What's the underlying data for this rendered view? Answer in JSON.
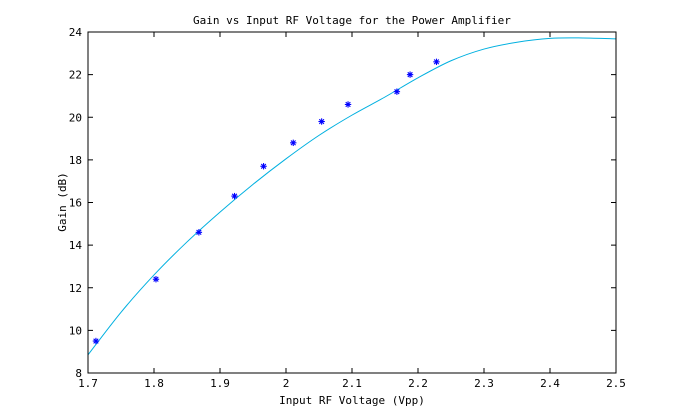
{
  "chart_data": {
    "type": "scatter",
    "title": "Gain vs Input RF Voltage for the Power Amplifier",
    "xlabel": "Input RF Voltage (Vpp)",
    "ylabel": "Gain (dB)",
    "xlim": [
      1.7,
      2.5
    ],
    "ylim": [
      8,
      24
    ],
    "xticks": [
      "1.7",
      "1.8",
      "1.9",
      "2",
      "2.1",
      "2.2",
      "2.3",
      "2.4",
      "2.5"
    ],
    "yticks": [
      "8",
      "10",
      "12",
      "14",
      "16",
      "18",
      "20",
      "22",
      "24"
    ],
    "grid": false,
    "series": [
      {
        "type": "scatter",
        "marker": "asterisk",
        "color": "#0000ff",
        "x": [
          1.712,
          1.803,
          1.868,
          1.922,
          1.966,
          2.011,
          2.054,
          2.094,
          2.168,
          2.188,
          2.228
        ],
        "y": [
          9.5,
          12.4,
          14.6,
          16.3,
          17.7,
          18.8,
          19.8,
          20.6,
          21.2,
          22.0,
          22.6
        ]
      },
      {
        "type": "line",
        "color": "#00b0e0",
        "x": [
          1.7,
          1.75,
          1.8,
          1.85,
          1.9,
          1.95,
          2.0,
          2.05,
          2.1,
          2.15,
          2.2,
          2.25,
          2.3,
          2.35,
          2.4,
          2.45,
          2.5
        ],
        "y": [
          8.85,
          10.85,
          12.6,
          14.15,
          15.55,
          16.85,
          18.05,
          19.15,
          20.1,
          20.95,
          21.85,
          22.65,
          23.2,
          23.52,
          23.7,
          23.72,
          23.68
        ]
      }
    ]
  }
}
